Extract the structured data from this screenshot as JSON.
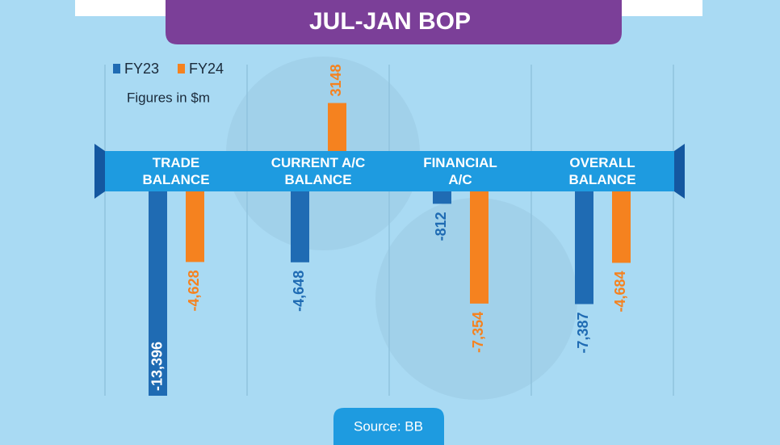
{
  "chart_data": {
    "type": "bar",
    "title": "JUL-JAN BOP",
    "note": "Figures in $m",
    "source": "Source: BB",
    "categories": [
      "TRADE\nBALANCE",
      "CURRENT A/C\nBALANCE",
      "FINANCIAL\nA/C",
      "OVERALL\nBALANCE"
    ],
    "series": [
      {
        "name": "FY23",
        "color": "#1f6bb3",
        "values": [
          -13396,
          -4648,
          -812,
          -7387
        ],
        "value_labels": [
          "-13,396",
          "-4,648",
          "-812",
          "-7,387"
        ]
      },
      {
        "name": "FY24",
        "color": "#f5821f",
        "values": [
          -4628,
          3148,
          -7354,
          -4684
        ],
        "value_labels": [
          "-4,628",
          "3148",
          "-7,354",
          "-4,684"
        ]
      }
    ]
  }
}
